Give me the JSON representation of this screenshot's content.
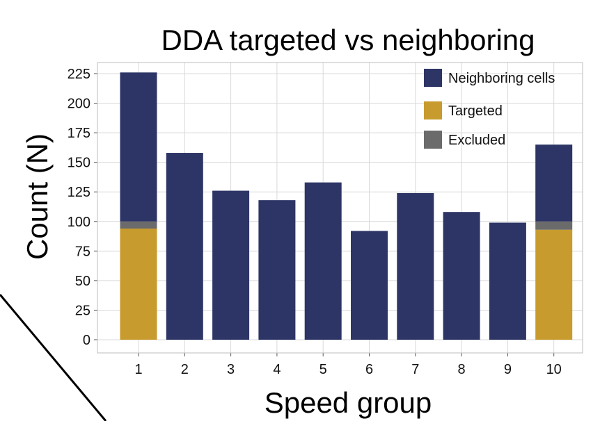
{
  "chart_data": {
    "type": "bar",
    "stacked": true,
    "title": "DDA targeted vs neighboring",
    "xlabel": "Speed group",
    "ylabel": "Count (N)",
    "categories": [
      "1",
      "2",
      "3",
      "4",
      "5",
      "6",
      "7",
      "8",
      "9",
      "10"
    ],
    "series": [
      {
        "name": "Targeted",
        "color": "#C89B2E",
        "values": [
          94,
          0,
          0,
          0,
          0,
          0,
          0,
          0,
          0,
          93
        ]
      },
      {
        "name": "Excluded",
        "color": "#6B6B6B",
        "values": [
          6,
          0,
          0,
          0,
          0,
          0,
          0,
          0,
          0,
          7
        ]
      },
      {
        "name": "Neighboring cells",
        "color": "#2D3566",
        "values": [
          126,
          158,
          126,
          118,
          133,
          92,
          124,
          108,
          99,
          65
        ]
      }
    ],
    "legend_order": [
      "Neighboring cells",
      "Targeted",
      "Excluded"
    ],
    "yticks": [
      0,
      25,
      50,
      75,
      100,
      125,
      150,
      175,
      200,
      225
    ],
    "ylim": [
      -10,
      240
    ],
    "grid": true,
    "legend_position": "top-right"
  }
}
